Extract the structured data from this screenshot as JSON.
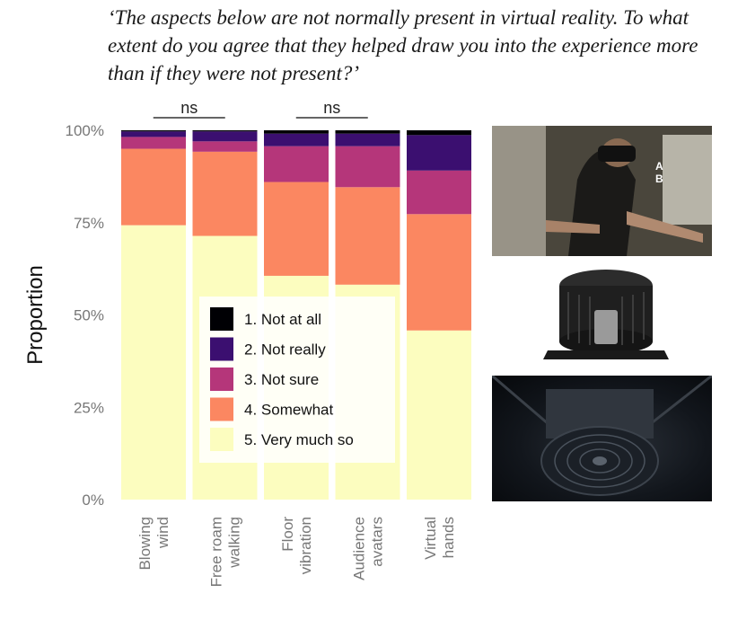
{
  "question": "‘The aspects below are not normally present in virtual reality. To what extent do you agree that they helped draw you into the experience more than if they were not present?’",
  "colors": {
    "1. Not at all": "#000004",
    "2. Not really": "#3b0f70",
    "3. Not sure": "#b5367a",
    "4. Somewhat": "#fb8761",
    "5. Very much so": "#fcfdbf",
    "axis_text": "#777777"
  },
  "photos": {
    "person": {
      "marker_a": "A",
      "marker_b": "B"
    },
    "device": {},
    "fan": {}
  },
  "chart_data": {
    "type": "bar",
    "stacked": true,
    "categories": [
      "Blowing\nwind",
      "Free roam\nwalking",
      "Floor\nvibration",
      "Audience\navatars",
      "Virtual\nhands"
    ],
    "ylabel": "Proportion",
    "ylim": [
      0,
      1
    ],
    "yticks": [
      "0%",
      "25%",
      "50%",
      "75%",
      "100%"
    ],
    "series": [
      {
        "name": "1. Not at all",
        "values": [
          0.003,
          0.003,
          0.009,
          0.009,
          0.013
        ]
      },
      {
        "name": "2. Not really",
        "values": [
          0.015,
          0.027,
          0.034,
          0.034,
          0.096
        ]
      },
      {
        "name": "3. Not sure",
        "values": [
          0.032,
          0.028,
          0.097,
          0.111,
          0.118
        ]
      },
      {
        "name": "4. Somewhat",
        "values": [
          0.207,
          0.228,
          0.254,
          0.264,
          0.315
        ]
      },
      {
        "name": "5. Very much so",
        "values": [
          0.743,
          0.714,
          0.606,
          0.582,
          0.458
        ]
      }
    ],
    "legend": [
      "1. Not at all",
      "2. Not really",
      "3. Not sure",
      "4. Somewhat",
      "5. Very much so"
    ],
    "annotations": [
      {
        "text": "ns",
        "from": 0,
        "to": 1
      },
      {
        "text": "ns",
        "from": 2,
        "to": 3
      }
    ]
  }
}
